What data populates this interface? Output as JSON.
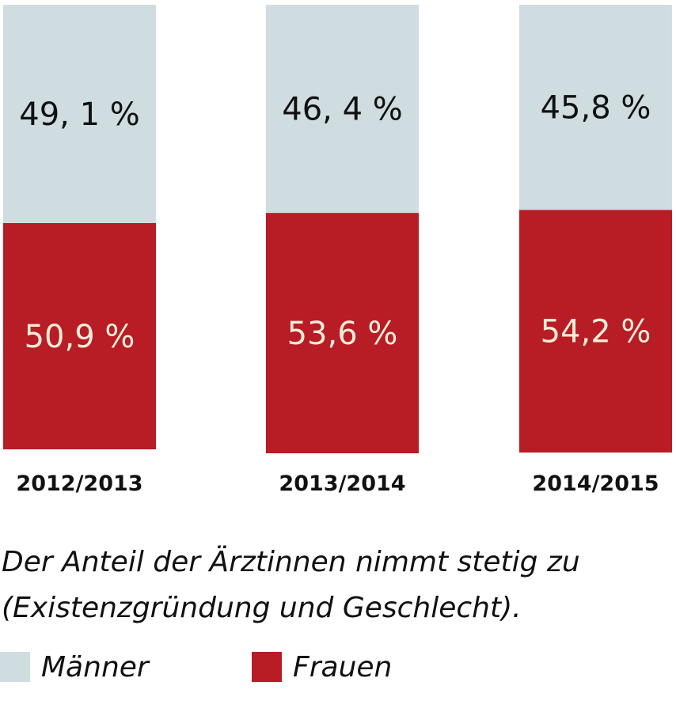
{
  "chart_data": {
    "type": "bar",
    "stacked": true,
    "categories": [
      "2012/2013",
      "2013/2014",
      "2014/2015"
    ],
    "series": [
      {
        "name": "Frauen",
        "values": [
          50.9,
          53.6,
          54.2
        ],
        "labels": [
          "50,9 %",
          "53,6 %",
          "54,2 %"
        ],
        "color": "#b81c25",
        "label_color": "#f5ecd8"
      },
      {
        "name": "Männer",
        "values": [
          49.1,
          46.4,
          45.8
        ],
        "labels": [
          "49, 1 %",
          "46, 4 %",
          "45,8 %"
        ],
        "color": "#cfdde0",
        "label_color": "#111111"
      }
    ],
    "ylim": [
      0,
      100
    ],
    "grid": false,
    "legend_position": "bottom-left"
  },
  "caption": {
    "line1": "Der Anteil der Ärztinnen nimmt stetig zu",
    "line2": "(Existenzgründung und Geschlecht)."
  },
  "legend": {
    "items": [
      {
        "label": "Männer",
        "color": "#cfdde0"
      },
      {
        "label": "Frauen",
        "color": "#b81c25"
      }
    ]
  }
}
